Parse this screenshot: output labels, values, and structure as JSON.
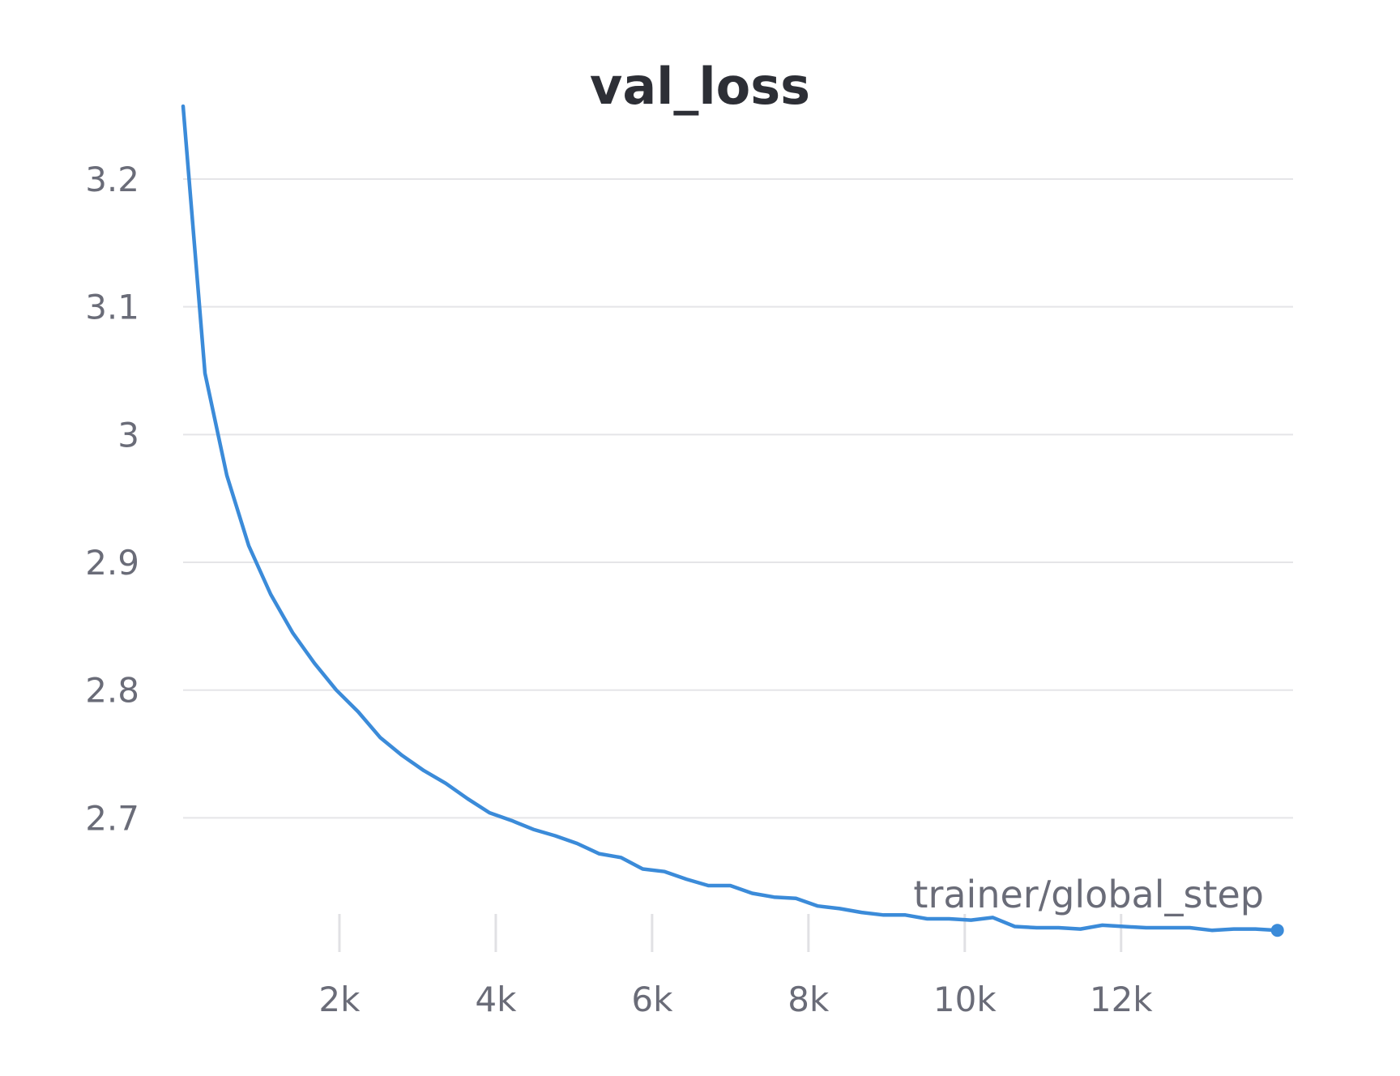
{
  "chart_data": {
    "type": "line",
    "title": "val_loss",
    "xlabel": "trainer/global_step",
    "ylabel": "",
    "xlim": [
      0,
      14200
    ],
    "ylim": [
      2.595,
      3.245
    ],
    "x_ticks": [
      2000,
      4000,
      6000,
      8000,
      10000,
      12000
    ],
    "x_tick_labels": [
      "2k",
      "4k",
      "6k",
      "8k",
      "10k",
      "12k"
    ],
    "y_ticks": [
      2.7,
      2.8,
      2.9,
      3.0,
      3.1,
      3.2
    ],
    "y_tick_labels": [
      "2.7",
      "2.8",
      "2.9",
      "3",
      "3.1",
      "3.2"
    ],
    "grid": "horizontal",
    "legend": "none",
    "colors": {
      "series": "#3b8bd9"
    },
    "series": [
      {
        "x": [
          0,
          280,
          560,
          840,
          1120,
          1400,
          1680,
          1960,
          2240,
          2520,
          2800,
          3080,
          3360,
          3640,
          3920,
          4200,
          4480,
          4760,
          5040,
          5320,
          5600,
          5880,
          6160,
          6440,
          6720,
          7000,
          7280,
          7560,
          7840,
          8120,
          8400,
          8680,
          8960,
          9240,
          9520,
          9800,
          10080,
          10360,
          10640,
          10920,
          11200,
          11480,
          11760,
          12040,
          12320,
          12600,
          12880,
          13160,
          13440,
          13720,
          14000
        ],
        "values": [
          3.257,
          3.048,
          2.968,
          2.913,
          2.875,
          2.845,
          2.821,
          2.8,
          2.783,
          2.763,
          2.749,
          2.737,
          2.727,
          2.715,
          2.704,
          2.698,
          2.691,
          2.686,
          2.68,
          2.672,
          2.669,
          2.66,
          2.658,
          2.652,
          2.647,
          2.647,
          2.641,
          2.638,
          2.637,
          2.631,
          2.629,
          2.626,
          2.624,
          2.624,
          2.621,
          2.621,
          2.62,
          2.622,
          2.615,
          2.614,
          2.614,
          2.613,
          2.616,
          2.615,
          2.614,
          2.614,
          2.614,
          2.612,
          2.613,
          2.613,
          2.612
        ]
      }
    ]
  }
}
